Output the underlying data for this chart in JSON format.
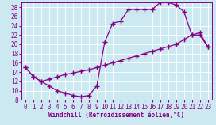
{
  "title": "",
  "xlabel": "Windchill (Refroidissement éolien,°C)",
  "background_color": "#cce8f0",
  "line_color": "#880088",
  "grid_color": "#ffffff",
  "xlim": [
    -0.5,
    23.5
  ],
  "ylim": [
    8,
    29
  ],
  "xticks": [
    0,
    1,
    2,
    3,
    4,
    5,
    6,
    7,
    8,
    9,
    10,
    11,
    12,
    13,
    14,
    15,
    16,
    17,
    18,
    19,
    20,
    21,
    22,
    23
  ],
  "yticks": [
    8,
    10,
    12,
    14,
    16,
    18,
    20,
    22,
    24,
    26,
    28
  ],
  "curve1_x": [
    0,
    1,
    2,
    3,
    4,
    5,
    6,
    7,
    8,
    9,
    10,
    11,
    12,
    13,
    14,
    15,
    16,
    17,
    18,
    19,
    20,
    21,
    22,
    23
  ],
  "curve1_y": [
    15,
    13,
    12,
    11,
    10,
    9.5,
    9,
    8.7,
    9,
    11,
    20.5,
    24.5,
    25,
    27.5,
    27.5,
    27.5,
    27.5,
    29,
    29,
    28.5,
    27,
    22,
    22,
    19.5
  ],
  "curve2_x": [
    0,
    1,
    2,
    3,
    4,
    5,
    6,
    7,
    8,
    9,
    10,
    11,
    12,
    13,
    14,
    15,
    16,
    17,
    18,
    19,
    20,
    21,
    22,
    23
  ],
  "curve2_y": [
    15,
    13,
    12,
    12.5,
    13,
    13.5,
    13.8,
    14.2,
    14.5,
    15,
    15.5,
    16,
    16.5,
    17,
    17.5,
    18,
    18.5,
    19,
    19.5,
    20,
    21,
    22,
    22.5,
    19.5
  ],
  "marker": "+",
  "markersize": 4,
  "markeredgewidth": 1.0,
  "linewidth": 0.9,
  "xlabel_fontsize": 5.5,
  "tick_fontsize": 5.5
}
